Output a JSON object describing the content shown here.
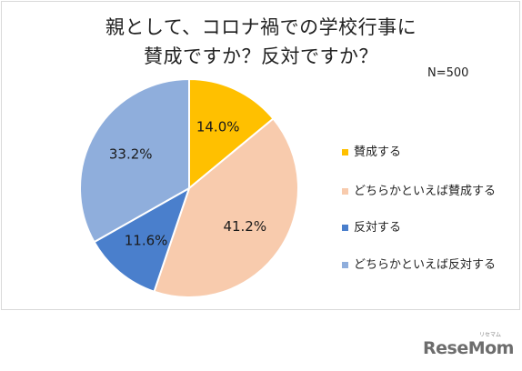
{
  "title_line1": "親として、コロナ禍での学校行事に",
  "title_line2": "賛成ですか？反対ですか？",
  "sample_size": "N=500",
  "chart_data": {
    "type": "pie",
    "title": "親として、コロナ禍での学校行事に賛成ですか？反対ですか？",
    "slices": [
      {
        "name": "賛成する",
        "value": 14.0,
        "label": "14.0%",
        "color": "#FFC000"
      },
      {
        "name": "どちらかといえば賛成する",
        "value": 41.2,
        "label": "41.2%",
        "color": "#F8CBAD"
      },
      {
        "name": "反対する",
        "value": 11.6,
        "label": "11.6%",
        "color": "#4A7FCC"
      },
      {
        "name": "どちらかといえば反対する",
        "value": 33.2,
        "label": "33.2%",
        "color": "#8FAEDC"
      }
    ],
    "legend_position": "right"
  },
  "brand": {
    "name": "ReseMom",
    "tagline": "リセマム"
  }
}
